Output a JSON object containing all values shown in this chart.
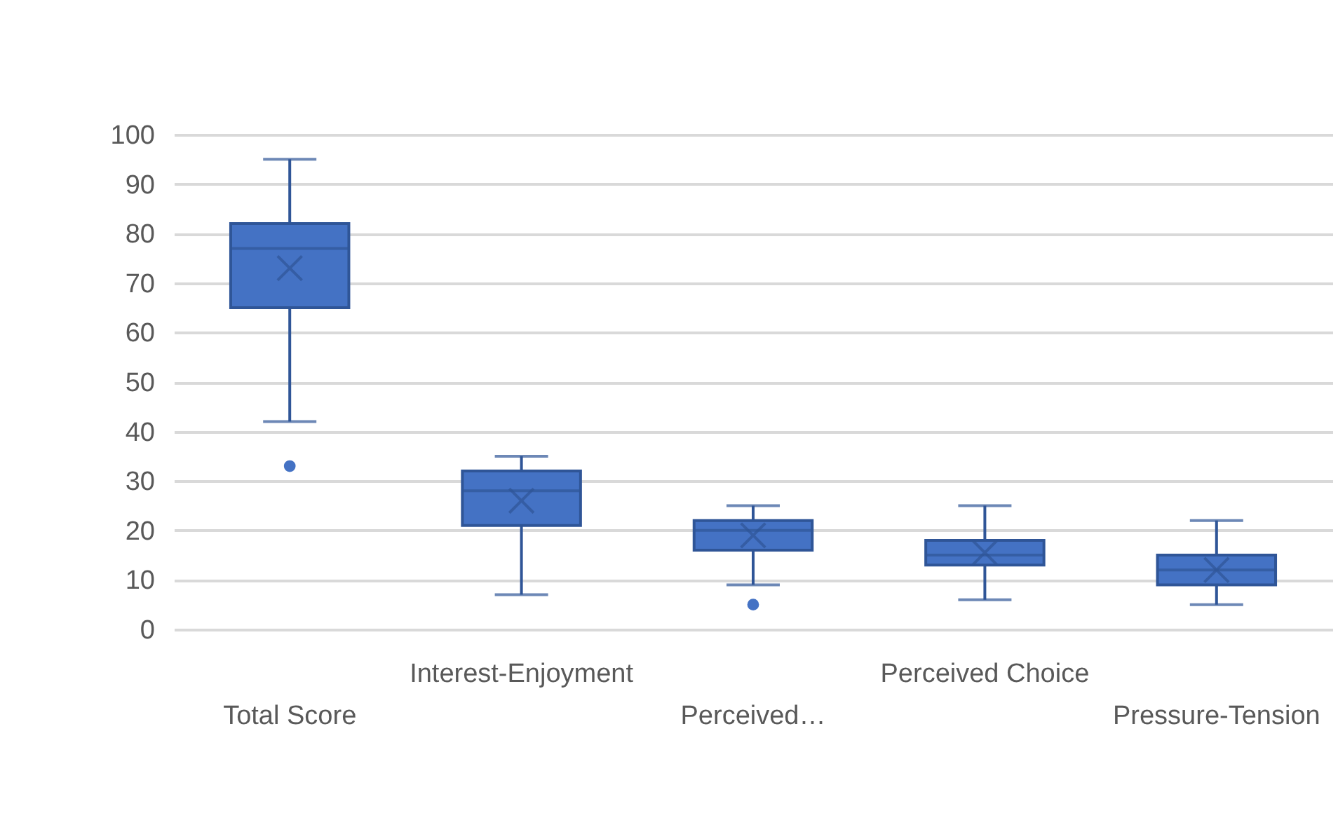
{
  "chart_data": {
    "type": "box",
    "categories": [
      "Total Score",
      "Interest-Enjoyment",
      "Perceived…",
      "Perceived Choice",
      "Pressure-Tension"
    ],
    "boxes": [
      {
        "low": 42,
        "q1": 65,
        "median": 77,
        "q3": 82,
        "high": 95,
        "mean": 73,
        "outliers": [
          33
        ]
      },
      {
        "low": 7,
        "q1": 21,
        "median": 28,
        "q3": 32,
        "high": 35,
        "mean": 26
      },
      {
        "low": 9,
        "q1": 16,
        "median": 20,
        "q3": 22,
        "high": 25,
        "mean": 19,
        "outliers": [
          5
        ]
      },
      {
        "low": 6,
        "q1": 13,
        "median": 15,
        "q3": 18,
        "high": 25,
        "mean": 15.5
      },
      {
        "low": 5,
        "q1": 9,
        "median": 12,
        "q3": 15,
        "high": 22,
        "mean": 12
      }
    ],
    "color": "#4472c4",
    "ylim": [
      0,
      100
    ],
    "yticks": [
      0,
      10,
      20,
      30,
      40,
      50,
      60,
      70,
      80,
      90,
      100
    ],
    "grid": "y"
  }
}
